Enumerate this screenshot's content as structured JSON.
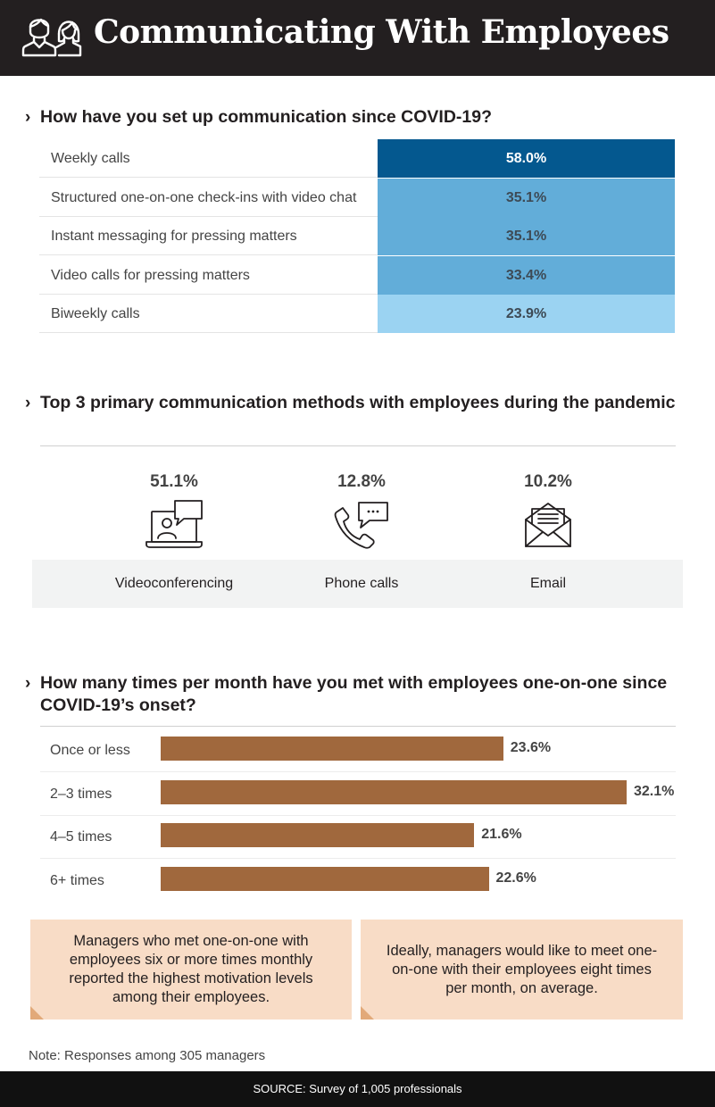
{
  "header": {
    "title": "Communicating With Employees",
    "icon": "people-icon"
  },
  "colors": {
    "header_bg": "#231f20",
    "table_dark": "#04588f",
    "table_mid": "#62add9",
    "table_light": "#9bd3f2",
    "bar": "#a0683d",
    "callout_bg": "#f8dcc6",
    "callout_fold": "#e2a979",
    "band_bg": "#f2f3f3",
    "footer_bg": "#111111"
  },
  "chart_data": [
    {
      "type": "table",
      "title": "How have you set up communication since COVID-19?",
      "categories": [
        "Weekly calls",
        "Structured one-on-one check-ins with video chat",
        "Instant messaging for pressing matters",
        "Video calls for pressing matters",
        "Biweekly calls"
      ],
      "values": [
        58.0,
        35.1,
        35.1,
        33.4,
        23.9
      ],
      "value_labels": [
        "58.0%",
        "35.1%",
        "35.1%",
        "33.4%",
        "23.9%"
      ],
      "cell_colors": [
        "#04588f",
        "#62add9",
        "#62add9",
        "#62add9",
        "#9bd3f2"
      ]
    },
    {
      "type": "table",
      "title": "Top 3 primary communication methods with employees during the pandemic",
      "categories": [
        "Videoconferencing",
        "Phone calls",
        "Email"
      ],
      "values": [
        51.1,
        12.8,
        10.2
      ],
      "value_labels": [
        "51.1%",
        "12.8%",
        "10.2%"
      ],
      "icons": [
        "laptop-video-chat-icon",
        "phone-chat-icon",
        "envelope-icon"
      ]
    },
    {
      "type": "bar",
      "orientation": "horizontal",
      "title": "How many times per month have you met with employees one-on-one since COVID-19’s onset?",
      "categories": [
        "Once or less",
        "2–3 times",
        "4–5 times",
        "6+ times"
      ],
      "values": [
        23.6,
        32.1,
        21.6,
        22.6
      ],
      "value_labels": [
        "23.6%",
        "32.1%",
        "21.6%",
        "22.6%"
      ],
      "xlim": [
        0,
        32.1
      ],
      "grid": false,
      "color": "#a0683d"
    }
  ],
  "callouts": [
    "Managers who met one-on-one with employees six or more times monthly reported the highest motivation levels among their employees.",
    "Ideally, managers would like to meet one-on-one with their employees eight times per month, on average."
  ],
  "note": "Note: Responses among 305 managers",
  "source": "SOURCE: Survey of 1,005 professionals"
}
